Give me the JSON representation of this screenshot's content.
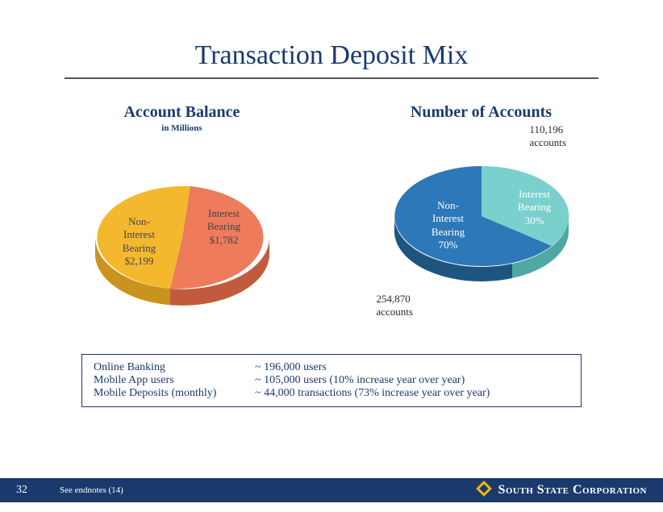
{
  "slide": {
    "title": "Transaction Deposit Mix",
    "page_number": "32",
    "endnote": "See endnotes (14)",
    "brand": "South State Corporation"
  },
  "charts": {
    "left": {
      "title": "Account Balance",
      "subtitle": "in Millions",
      "type": "pie",
      "slices": [
        {
          "name": "Non-Interest Bearing",
          "value": 2199,
          "label": "Non-\nInterest\nBearing\n$2,199",
          "color_top": "#f4b82e",
          "color_side": "#c9931d"
        },
        {
          "name": "Interest Bearing",
          "value": 1782,
          "label": "Interest\nBearing\n$1,782",
          "color_top": "#ee7b5b",
          "color_side": "#c25a3e"
        }
      ],
      "background_color": "#ffffff",
      "label_fontsize": 13,
      "label_color": "#3b3b3b"
    },
    "right": {
      "title": "Number of Accounts",
      "type": "pie",
      "slices": [
        {
          "name": "Non-Interest Bearing",
          "value": 254870,
          "pct": "70%",
          "label": "Non-\nInterest\nBearing\n70%",
          "color_top": "#2d78b8",
          "color_side": "#1e557f",
          "ext_label": "254,870\naccounts",
          "label_text_color": "#ffffff"
        },
        {
          "name": "Interest Bearing",
          "value": 110196,
          "pct": "30%",
          "label": "Interest\nBearing\n30%",
          "color_top": "#79d0cc",
          "color_side": "#4fa8a3",
          "ext_label": "110,196\naccounts",
          "label_text_color": "#ffffff"
        }
      ],
      "background_color": "#ffffff",
      "label_fontsize": 13
    }
  },
  "stats": {
    "rows": [
      {
        "label": "Online Banking",
        "value": "~  196,000 users"
      },
      {
        "label": "Mobile App users",
        "value": "~  105,000 users (10% increase year over year)"
      },
      {
        "label": "Mobile Deposits (monthly)",
        "value": "~    44,000 transactions (73% increase year over year)"
      }
    ],
    "border_color": "#1a3a6e",
    "text_color": "#1a3a6e",
    "fontsize": 14
  },
  "colors": {
    "title": "#1a3a6e",
    "footer_bg": "#1a3a6e",
    "footer_text": "#ffffff",
    "accent": "#f2b40f"
  }
}
